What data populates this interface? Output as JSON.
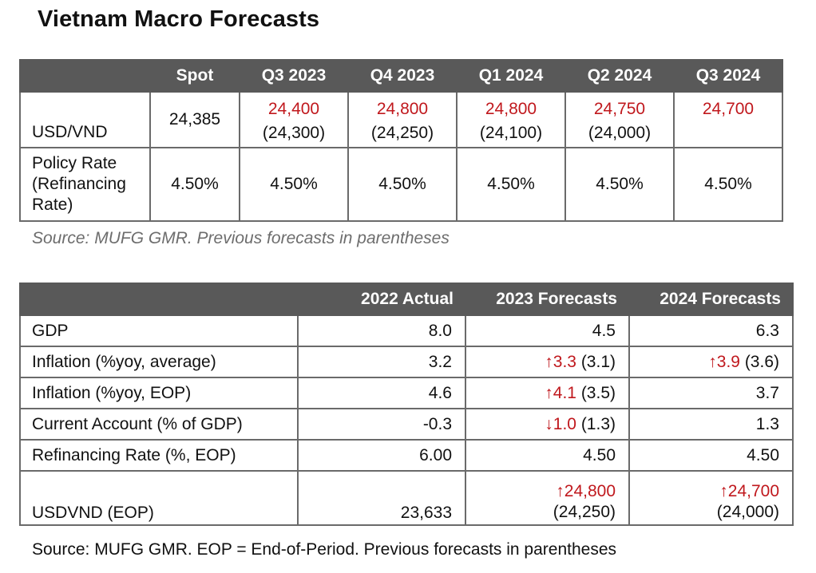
{
  "title": "Vietnam Macro Forecasts",
  "fx_table": {
    "headers": [
      "",
      "Spot",
      "Q3 2023",
      "Q4 2023",
      "Q1 2024",
      "Q2 2024",
      "Q3 2024"
    ],
    "rows": [
      {
        "label": "USD/VND",
        "spot": "24,385",
        "forecasts": [
          {
            "value": "24,400",
            "previous": "(24,300)"
          },
          {
            "value": "24,800",
            "previous": "(24,250)"
          },
          {
            "value": "24,800",
            "previous": "(24,100)"
          },
          {
            "value": "24,750",
            "previous": "(24,000)"
          },
          {
            "value": "24,700",
            "previous": ""
          }
        ]
      },
      {
        "label": "Policy Rate (Refinancing Rate)",
        "label_lines": [
          "Policy Rate",
          "(Refinancing",
          "Rate)"
        ],
        "spot": "4.50%",
        "forecasts": [
          "4.50%",
          "4.50%",
          "4.50%",
          "4.50%",
          "4.50%"
        ]
      }
    ],
    "source": "Source: MUFG GMR.   Previous forecasts in parentheses"
  },
  "macro_table": {
    "headers": [
      "",
      "2022 Actual",
      "2023 Forecasts",
      "2024 Forecasts"
    ],
    "rows": [
      {
        "label": "GDP",
        "actual": "8.0",
        "f2023": {
          "arrow": "",
          "value": "4.5",
          "previous": ""
        },
        "f2024": {
          "arrow": "",
          "value": "6.3",
          "previous": ""
        }
      },
      {
        "label": "Inflation (%yoy, average)",
        "actual": "3.2",
        "f2023": {
          "arrow": "↑",
          "value": "3.3",
          "previous": "(3.1)"
        },
        "f2024": {
          "arrow": "↑",
          "value": "3.9",
          "previous": "(3.6)"
        }
      },
      {
        "label": "Inflation (%yoy, EOP)",
        "actual": "4.6",
        "f2023": {
          "arrow": "↑",
          "value": "4.1",
          "previous": "(3.5)"
        },
        "f2024": {
          "arrow": "",
          "value": "3.7",
          "previous": ""
        }
      },
      {
        "label": "Current Account (% of GDP)",
        "actual": "-0.3",
        "f2023": {
          "arrow": "↓",
          "value": "1.0",
          "previous": "(1.3)"
        },
        "f2024": {
          "arrow": "",
          "value": "1.3",
          "previous": ""
        }
      },
      {
        "label": "Refinancing Rate (%, EOP)",
        "actual": "6.00",
        "f2023": {
          "arrow": "",
          "value": "4.50",
          "previous": ""
        },
        "f2024": {
          "arrow": "",
          "value": "4.50",
          "previous": ""
        }
      },
      {
        "label": "USDVND (EOP)",
        "actual": "23,633",
        "f2023": {
          "arrow": "↑",
          "value": "24,800",
          "previous": "(24,250)"
        },
        "f2024": {
          "arrow": "↑",
          "value": "24,700",
          "previous": "(24,000)"
        }
      }
    ],
    "source": "Source: MUFG GMR.  EOP = End-of-Period. Previous forecasts in parentheses"
  },
  "colors": {
    "header_bg": "#595959",
    "forecast_red": "#c0181d",
    "border": "#6a6a6a",
    "source_grey": "#6d6d6d"
  }
}
